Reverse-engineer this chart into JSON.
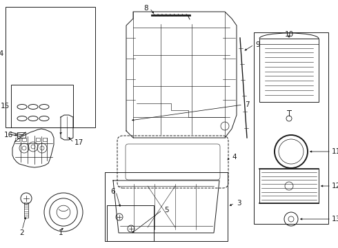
{
  "bg_color": "#ffffff",
  "line_color": "#1a1a1a",
  "fig_width": 4.9,
  "fig_height": 3.6,
  "dpi": 100,
  "label_fontsize": 7.5,
  "lw": 0.7
}
